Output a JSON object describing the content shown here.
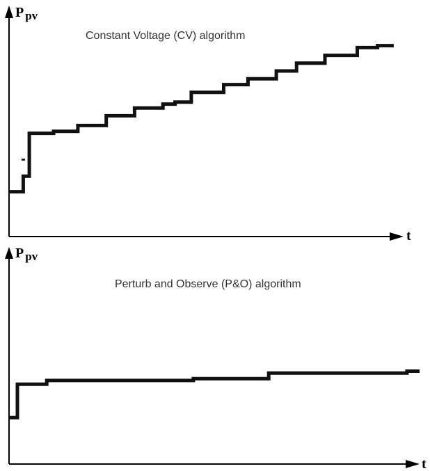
{
  "chart_data": [
    {
      "type": "line",
      "title": "Constant Voltage (CV) algorithm",
      "ylabel_main": "P",
      "ylabel_sub": "pv",
      "xlabel": "t",
      "grid": false,
      "xlim": [
        0,
        100
      ],
      "ylim": [
        0,
        100
      ],
      "series": [
        {
          "x": [
            0,
            3.5,
            3.5,
            5,
            5,
            11,
            11,
            17,
            17,
            24,
            24,
            31,
            31,
            38,
            38,
            41,
            41,
            45,
            45,
            53,
            53,
            59,
            59,
            66,
            66,
            71,
            71,
            78,
            78,
            86,
            86,
            91,
            91,
            95
          ],
          "y": [
            23,
            23,
            31,
            31,
            53,
            53,
            54,
            54,
            57,
            57,
            62,
            62,
            66,
            66,
            68,
            68,
            69,
            69,
            74,
            74,
            78,
            78,
            81,
            81,
            85,
            85,
            89,
            89,
            93,
            93,
            97,
            97,
            98,
            98
          ]
        },
        {
          "x": [
            3.5,
            3.5
          ],
          "y": [
            40,
            39
          ]
        }
      ]
    },
    {
      "type": "line",
      "title": "Perturb and Observe (P&O) algorithm",
      "ylabel_main": "P",
      "ylabel_sub": "pv",
      "xlabel": "t",
      "grid": false,
      "xlim": [
        0,
        100
      ],
      "ylim": [
        0,
        100
      ],
      "series": [
        {
          "x": [
            0,
            2,
            2,
            9,
            9,
            44,
            44,
            62,
            62,
            95,
            95,
            98
          ],
          "y": [
            25,
            25,
            43,
            43,
            45,
            45,
            46,
            46,
            49,
            49,
            50,
            50
          ]
        }
      ]
    }
  ]
}
